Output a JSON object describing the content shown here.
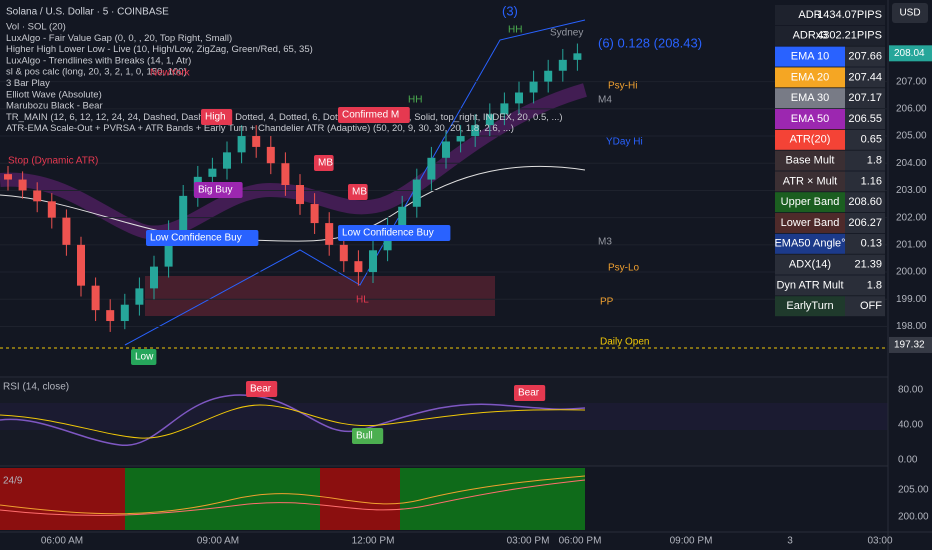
{
  "header": {
    "symbol": "Solana / U.S. Dollar · 5 · COINBASE",
    "currency": "USD"
  },
  "indicators": [
    "Vol · SOL (20)",
    "LuxAlgo - Fair Value Gap (0, 0, , 20, Top Right, Small)",
    "Higher High Lower Low - Live (10, High/Low, ZigZag, Green/Red, 65, 35)",
    "LuxAlgo - Trendlines with Breaks (14, 1, Atr)",
    "sl & pos calc (long, 20, 3, 2, 1, 0, 150, 100)",
    "3 Bar Play",
    "Elliott Wave (Absolute)",
    "Marubozu Black - Bear",
    "TR_MAIN (12, 6, 12, 12, 24, 24, Dashed, Dashed, 14, Dotted, 4, Dotted, 6, Dotted, 15, Solid, 13, Solid, top_right, INDEX, 20, 0.5, ...)",
    "ATR-EMA Scale-Out + PVRSA + ATR Bands + Early Turn + Chandelier ATR (Adaptive) (50, 20, 9, 30, 30, 20, 1.8, 2.6, ...)"
  ],
  "table": [
    {
      "label": "ADR",
      "value": "1434.07PIPS",
      "color": "#1e222d"
    },
    {
      "label": "ADRx3",
      "value": "4302.21PIPS",
      "color": "#1e222d"
    },
    {
      "label": "EMA 10",
      "value": "207.66",
      "color": "#2962ff"
    },
    {
      "label": "EMA 20",
      "value": "207.44",
      "color": "#f5a623"
    },
    {
      "label": "EMA 30",
      "value": "207.17",
      "color": "#787b86"
    },
    {
      "label": "EMA 50",
      "value": "206.55",
      "color": "#9c27b0"
    },
    {
      "label": "ATR(20)",
      "value": "0.65",
      "color": "#f44336"
    },
    {
      "label": "Base Mult",
      "value": "1.8",
      "color": "#3b2f33"
    },
    {
      "label": "ATR × Mult",
      "value": "1.16",
      "color": "#3b2f33"
    },
    {
      "label": "Upper Band",
      "value": "208.60",
      "color": "#1b5e20"
    },
    {
      "label": "Lower Band",
      "value": "206.27",
      "color": "#4e2a2a"
    },
    {
      "label": "EMA50 Angle°",
      "value": "0.13",
      "color": "#1c3a8a"
    },
    {
      "label": "ADX(14)",
      "value": "21.39",
      "color": "#2a2e39"
    },
    {
      "label": "Dyn ATR Mult",
      "value": "1.8",
      "color": "#2a2e39"
    },
    {
      "label": "EarlyTurn",
      "value": "OFF",
      "color": "#1f3a2c"
    }
  ],
  "ylim": [
    196.4,
    210
  ],
  "price_axis": [
    {
      "value": 207,
      "label": "207.00"
    },
    {
      "value": 206,
      "label": "206.00"
    },
    {
      "value": 205,
      "label": "205.00"
    },
    {
      "value": 204,
      "label": "204.00"
    },
    {
      "value": 203,
      "label": "203.00"
    },
    {
      "value": 202,
      "label": "202.00"
    },
    {
      "value": 201,
      "label": "201.00"
    },
    {
      "value": 200,
      "label": "200.00"
    },
    {
      "value": 199,
      "label": "199.00"
    },
    {
      "value": 198,
      "label": "198.00"
    }
  ],
  "price_tags": [
    {
      "value": 208.04,
      "label": "208.04",
      "color": "#26a69a"
    },
    {
      "value": 197.32,
      "label": "197.32",
      "color": "#363a45"
    }
  ],
  "time_axis": [
    "06:00 AM",
    "09:00 AM",
    "12:00 PM",
    "03:00 PM",
    "06:00 PM",
    "09:00 PM",
    "3",
    "03:00"
  ],
  "rsi_title": "RSI (14, close)",
  "rsi_axis": [
    "80.00",
    "40.00",
    "0.00"
  ],
  "pane3_title": "24/9",
  "pane3_axis": [
    "205.00",
    "200.00"
  ],
  "annotations": [
    {
      "text": "High",
      "color": "#e53950"
    },
    {
      "text": "MB",
      "color": "#e53950"
    },
    {
      "text": "MB",
      "color": "#e53950"
    },
    {
      "text": "Low",
      "color": "#26a65b"
    },
    {
      "text": "HH",
      "color": "#4caf50"
    },
    {
      "text": "HH",
      "color": "#4caf50"
    },
    {
      "text": "HL",
      "color": "#e53950"
    },
    {
      "text": "Confirmed M",
      "color": "#e53950"
    },
    {
      "text": "Low Confidence Buy",
      "color": "#2962ff"
    },
    {
      "text": "Low Confidence Buy",
      "color": "#2962ff"
    },
    {
      "text": "Big Buy",
      "color": "#9c27b0"
    },
    {
      "text": "Bear",
      "color": "#e53950"
    },
    {
      "text": "Bear",
      "color": "#e53950"
    },
    {
      "text": "Bull",
      "color": "#4caf50"
    },
    {
      "text": "Daily Open",
      "color": "#f0c808"
    },
    {
      "text": "Psy-Hi",
      "color": "#f0a030"
    },
    {
      "text": "Psy-Lo",
      "color": "#f0a030"
    },
    {
      "text": "PP",
      "color": "#f0a030"
    },
    {
      "text": "M4",
      "color": "#9598a1"
    },
    {
      "text": "M3",
      "color": "#9598a1"
    },
    {
      "text": "YDay Hi",
      "color": "#2962ff"
    },
    {
      "text": "(3)",
      "color": "#2962ff"
    },
    {
      "text": "Sydney",
      "color": "#9598a1"
    },
    {
      "text": "(6) 0.128 (208.43)",
      "color": "#2962ff"
    },
    {
      "text": "NewYork",
      "color": "#e53950"
    },
    {
      "text": "Stop (Dynamic ATR)",
      "color": "#e53950"
    }
  ],
  "candles": [
    [
      203.6,
      203.9,
      203.0,
      203.4
    ],
    [
      203.4,
      203.7,
      202.7,
      203.0
    ],
    [
      203.0,
      203.3,
      202.2,
      202.6
    ],
    [
      202.6,
      202.9,
      201.6,
      202.0
    ],
    [
      202.0,
      202.3,
      200.6,
      201.0
    ],
    [
      201.0,
      201.3,
      199.1,
      199.5
    ],
    [
      199.5,
      199.8,
      198.2,
      198.6
    ],
    [
      198.6,
      199.0,
      197.8,
      198.2
    ],
    [
      198.2,
      199.2,
      197.9,
      198.8
    ],
    [
      198.8,
      199.8,
      198.4,
      199.4
    ],
    [
      199.4,
      200.6,
      199.0,
      200.2
    ],
    [
      200.2,
      201.9,
      199.8,
      201.5
    ],
    [
      201.5,
      203.2,
      201.1,
      202.8
    ],
    [
      202.8,
      203.9,
      202.4,
      203.5
    ],
    [
      203.5,
      204.2,
      203.1,
      203.8
    ],
    [
      203.8,
      204.8,
      203.4,
      204.4
    ],
    [
      204.4,
      205.4,
      204.0,
      205.0
    ],
    [
      205.0,
      205.4,
      204.2,
      204.6
    ],
    [
      204.6,
      205.0,
      203.6,
      204.0
    ],
    [
      204.0,
      204.4,
      202.8,
      203.2
    ],
    [
      203.2,
      203.6,
      202.1,
      202.5
    ],
    [
      202.5,
      202.9,
      201.4,
      201.8
    ],
    [
      201.8,
      202.2,
      200.6,
      201.0
    ],
    [
      201.0,
      201.4,
      200.0,
      200.4
    ],
    [
      200.4,
      200.8,
      199.5,
      200.0
    ],
    [
      200.0,
      201.2,
      199.6,
      200.8
    ],
    [
      200.8,
      202.0,
      200.4,
      201.6
    ],
    [
      201.6,
      202.8,
      201.2,
      202.4
    ],
    [
      202.4,
      203.8,
      202.0,
      203.4
    ],
    [
      203.4,
      204.6,
      203.0,
      204.2
    ],
    [
      204.2,
      205.2,
      203.8,
      204.8
    ],
    [
      204.8,
      205.4,
      204.4,
      205.0
    ],
    [
      205.0,
      205.8,
      204.6,
      205.4
    ],
    [
      205.4,
      206.2,
      205.0,
      205.8
    ],
    [
      205.8,
      206.6,
      205.4,
      206.2
    ],
    [
      206.2,
      207.0,
      205.8,
      206.6
    ],
    [
      206.6,
      207.4,
      206.2,
      207.0
    ],
    [
      207.0,
      207.8,
      206.6,
      207.4
    ],
    [
      207.4,
      208.2,
      207.0,
      207.8
    ],
    [
      207.8,
      208.4,
      207.4,
      208.04
    ]
  ]
}
